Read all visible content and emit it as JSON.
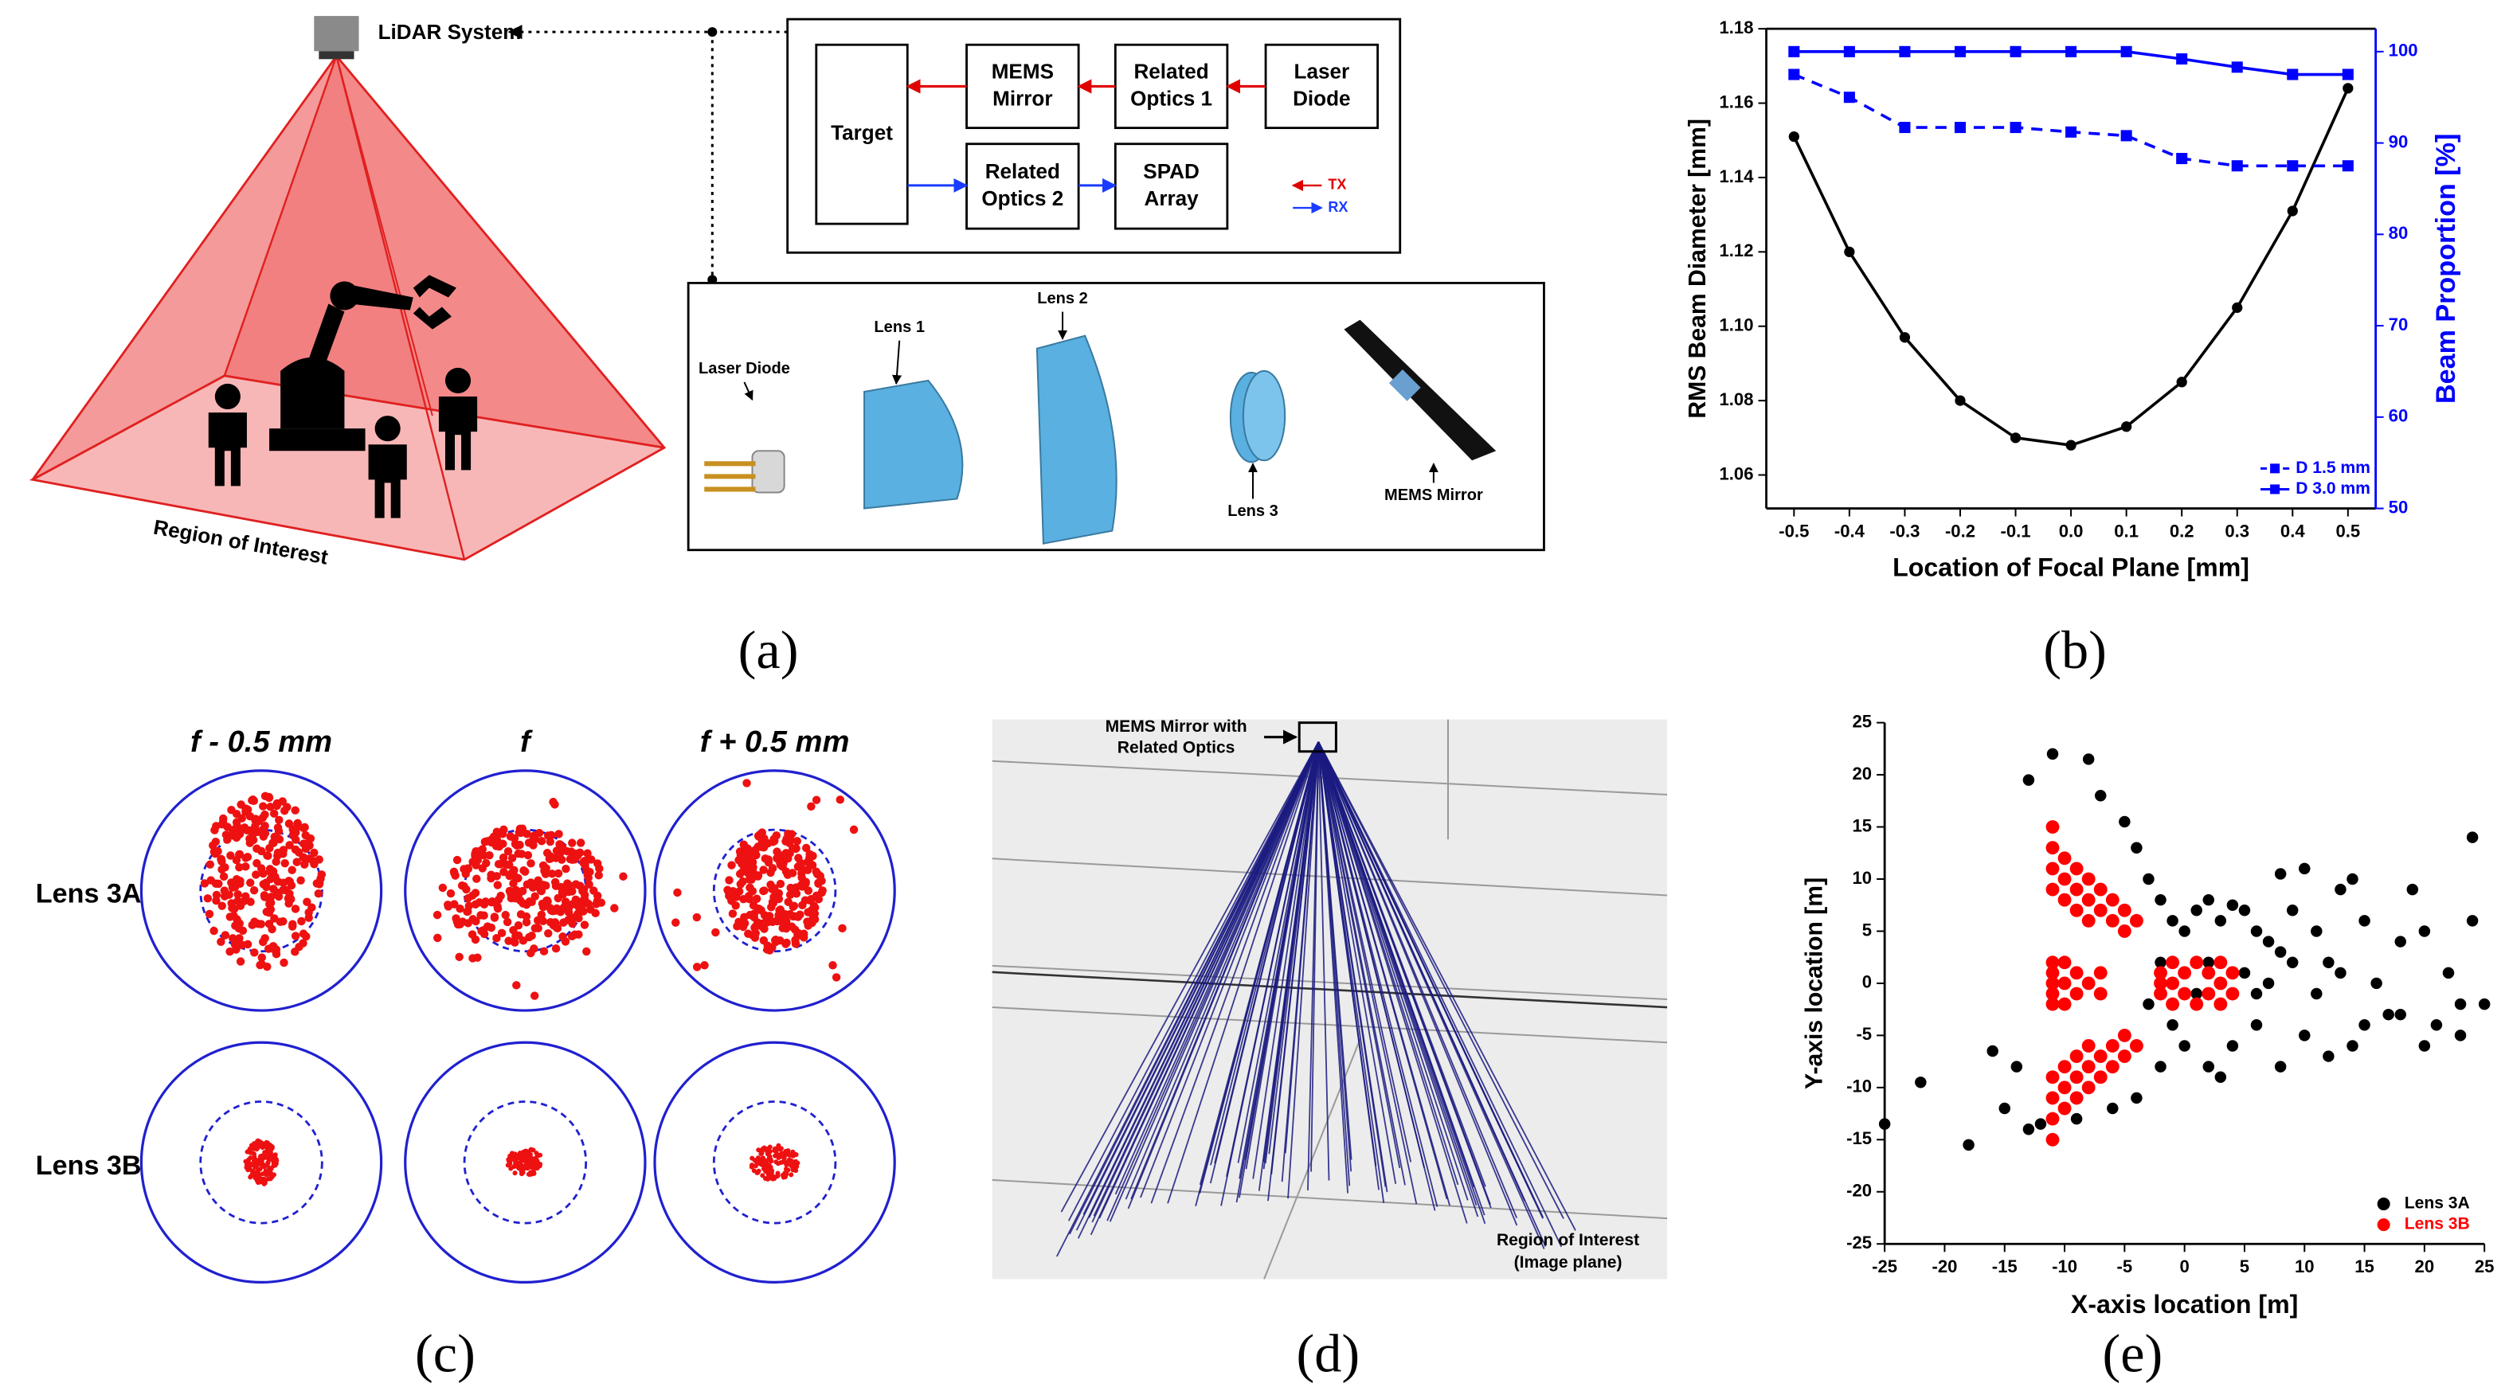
{
  "chart_data": [
    {
      "type": "line",
      "x": [
        -0.5,
        -0.4,
        -0.3,
        -0.2,
        -0.1,
        0,
        0.1,
        0.2,
        0.3,
        0.4,
        0.5
      ],
      "xlim": [
        -0.55,
        0.55
      ],
      "xticks": [
        -0.5,
        -0.4,
        -0.3,
        -0.2,
        -0.1,
        {
          "value": 0,
          "label": "0.0"
        },
        0.1,
        0.2,
        0.3,
        0.4,
        0.5
      ],
      "ylim": [
        1.051,
        1.18
      ],
      "yticks": [
        1.06,
        1.08,
        {
          "value": 1.1,
          "label": "1.10"
        },
        1.12,
        1.14,
        1.16,
        1.18
      ],
      "y2lim": [
        50,
        102.5
      ],
      "y2ticks": [
        50,
        60,
        70,
        80,
        90,
        100
      ],
      "y2_color": "#0000ff",
      "xlabel": "Location of Focal Plane [mm]",
      "ylabel": "RMS Beam Diameter [mm]",
      "y2label": "Beam Proportion [%]",
      "legend": "lower right",
      "series": [
        {
          "color": "#000000",
          "marker": "circle",
          "values": [
            1.151,
            1.12,
            1.097,
            1.08,
            1.07,
            1.068,
            1.073,
            1.085,
            1.105,
            1.131,
            1.164
          ]
        },
        {
          "name": "D 1.5 mm",
          "color": "#0000ff",
          "marker": "square",
          "dashed": true,
          "axis": "y2",
          "values": [
            97.5,
            95,
            91.7,
            91.7,
            91.7,
            91.2,
            90.8,
            88.3,
            87.5,
            87.5,
            87.5
          ]
        },
        {
          "name": "D 3.0 mm",
          "color": "#0000ff",
          "marker": "square",
          "axis": "y2",
          "values": [
            100,
            100,
            100,
            100,
            100,
            100,
            100,
            99.2,
            98.3,
            97.5,
            97.5
          ]
        }
      ]
    },
    {
      "type": "scatter",
      "xlim": [
        -25,
        25
      ],
      "ylim": [
        -25,
        25
      ],
      "xticks": [
        -25,
        -20,
        -15,
        -10,
        -5,
        0,
        5,
        10,
        15,
        20,
        25
      ],
      "yticks": [
        -25,
        -20,
        -15,
        -10,
        -5,
        0,
        5,
        10,
        15,
        20,
        25
      ],
      "xlabel": "X-axis location [m]",
      "ylabel": "Y-axis location [m]",
      "legend": "lower right",
      "series": [
        {
          "name": "Lens 3A",
          "color": "#000000",
          "x": [
            -25,
            -22,
            -18,
            -16,
            -15,
            -14,
            -13,
            -13,
            -11,
            -8,
            -7,
            -5,
            -4,
            -3,
            -2,
            -1,
            0,
            1,
            2,
            3,
            4,
            5,
            6,
            7,
            8,
            9,
            10,
            11,
            12,
            13,
            14,
            15,
            16,
            17,
            18,
            19,
            20,
            21,
            22,
            23,
            24,
            25,
            24,
            23,
            20,
            18,
            15,
            14,
            12,
            10,
            8,
            6,
            4,
            3,
            2,
            0,
            -1,
            -2,
            -4,
            -6,
            -9,
            -12,
            -3,
            -2,
            1,
            2,
            5,
            7,
            9,
            11,
            13,
            6,
            8,
            -1
          ],
          "y": [
            -13.5,
            -9.5,
            -15.5,
            -6.5,
            -12,
            -8,
            19.5,
            -14,
            22,
            21.5,
            18,
            15.5,
            13,
            10,
            8,
            6,
            5,
            7,
            8,
            6,
            7.5,
            7,
            5,
            4,
            10.5,
            7,
            11,
            5,
            2,
            9,
            10,
            6,
            0,
            -3,
            4,
            9,
            5,
            -4,
            1,
            -2,
            14,
            -2,
            6,
            -5,
            -6,
            -3,
            -4,
            -6,
            -7,
            -5,
            -8,
            -4,
            -6,
            -9,
            -8,
            -6,
            -4,
            -8,
            -11,
            -12,
            -13,
            -13.5,
            -2,
            2,
            -1,
            2,
            1,
            0,
            2,
            -1,
            1,
            -1,
            3,
            0
          ]
        },
        {
          "name": "Lens 3B",
          "color": "#ff0000",
          "x": [
            -11,
            -11,
            -11,
            -10,
            -10,
            -9,
            -9,
            -8,
            -8,
            -7,
            -7,
            -6,
            -6,
            -5,
            -5,
            -4,
            -10,
            -9,
            -8,
            -11,
            -11,
            -11,
            -11,
            -10,
            -10,
            -9,
            -9,
            -8,
            -8,
            -7,
            -7,
            -6,
            -6,
            -5,
            -5,
            -4,
            -10,
            -9,
            -8,
            -11,
            -11,
            -11,
            -11,
            -11,
            -11,
            -10,
            -10,
            -10,
            -9,
            -9,
            -8,
            -7,
            -7,
            -2,
            -2,
            -1,
            -1,
            -1,
            0,
            0,
            1,
            1,
            2,
            2,
            3,
            3,
            3,
            4,
            4,
            -2
          ],
          "y": [
            15,
            13,
            11,
            12,
            10,
            11,
            9,
            10,
            8,
            9,
            7,
            8,
            6,
            7,
            5,
            6,
            8,
            7,
            6,
            9,
            -15,
            -13,
            -11,
            -12,
            -10,
            -11,
            -9,
            -10,
            -8,
            -9,
            -7,
            -8,
            -6,
            -7,
            -5,
            -6,
            -8,
            -7,
            -6,
            -9,
            2,
            1,
            0,
            -1,
            -2,
            2,
            0,
            -2,
            1,
            -1,
            0,
            1,
            -1,
            1,
            -1,
            2,
            0,
            -2,
            1,
            -1,
            2,
            -2,
            1,
            -1,
            2,
            0,
            -2,
            1,
            -1,
            0
          ]
        }
      ]
    }
  ],
  "panel_labels": [
    "(a)",
    "(b)",
    "(c)",
    "(d)",
    "(e)"
  ],
  "panel_a": {
    "lidar": "LiDAR System",
    "region": "Region of Interest",
    "blocks": [
      [
        "Target"
      ],
      [
        "MEMS",
        "Mirror"
      ],
      [
        "Related",
        "Optics 1"
      ],
      [
        "Laser",
        "Diode"
      ],
      [
        "Related",
        "Optics 2"
      ],
      [
        "SPAD",
        "Array"
      ]
    ],
    "legend": [
      "TX",
      "RX"
    ],
    "components": [
      "Laser Diode",
      "Lens 1",
      "Lens 2",
      "Lens 3",
      "MEMS Mirror"
    ]
  },
  "panel_c": {
    "columns": [
      "f - 0.5 mm",
      "f",
      "f + 0.5 mm"
    ],
    "rows": [
      "Lens 3A",
      "Lens 3B"
    ]
  },
  "panel_d": {
    "source": [
      "MEMS Mirror with",
      "Related Optics"
    ],
    "target": [
      "Region of Interest",
      "(Image plane)"
    ]
  }
}
